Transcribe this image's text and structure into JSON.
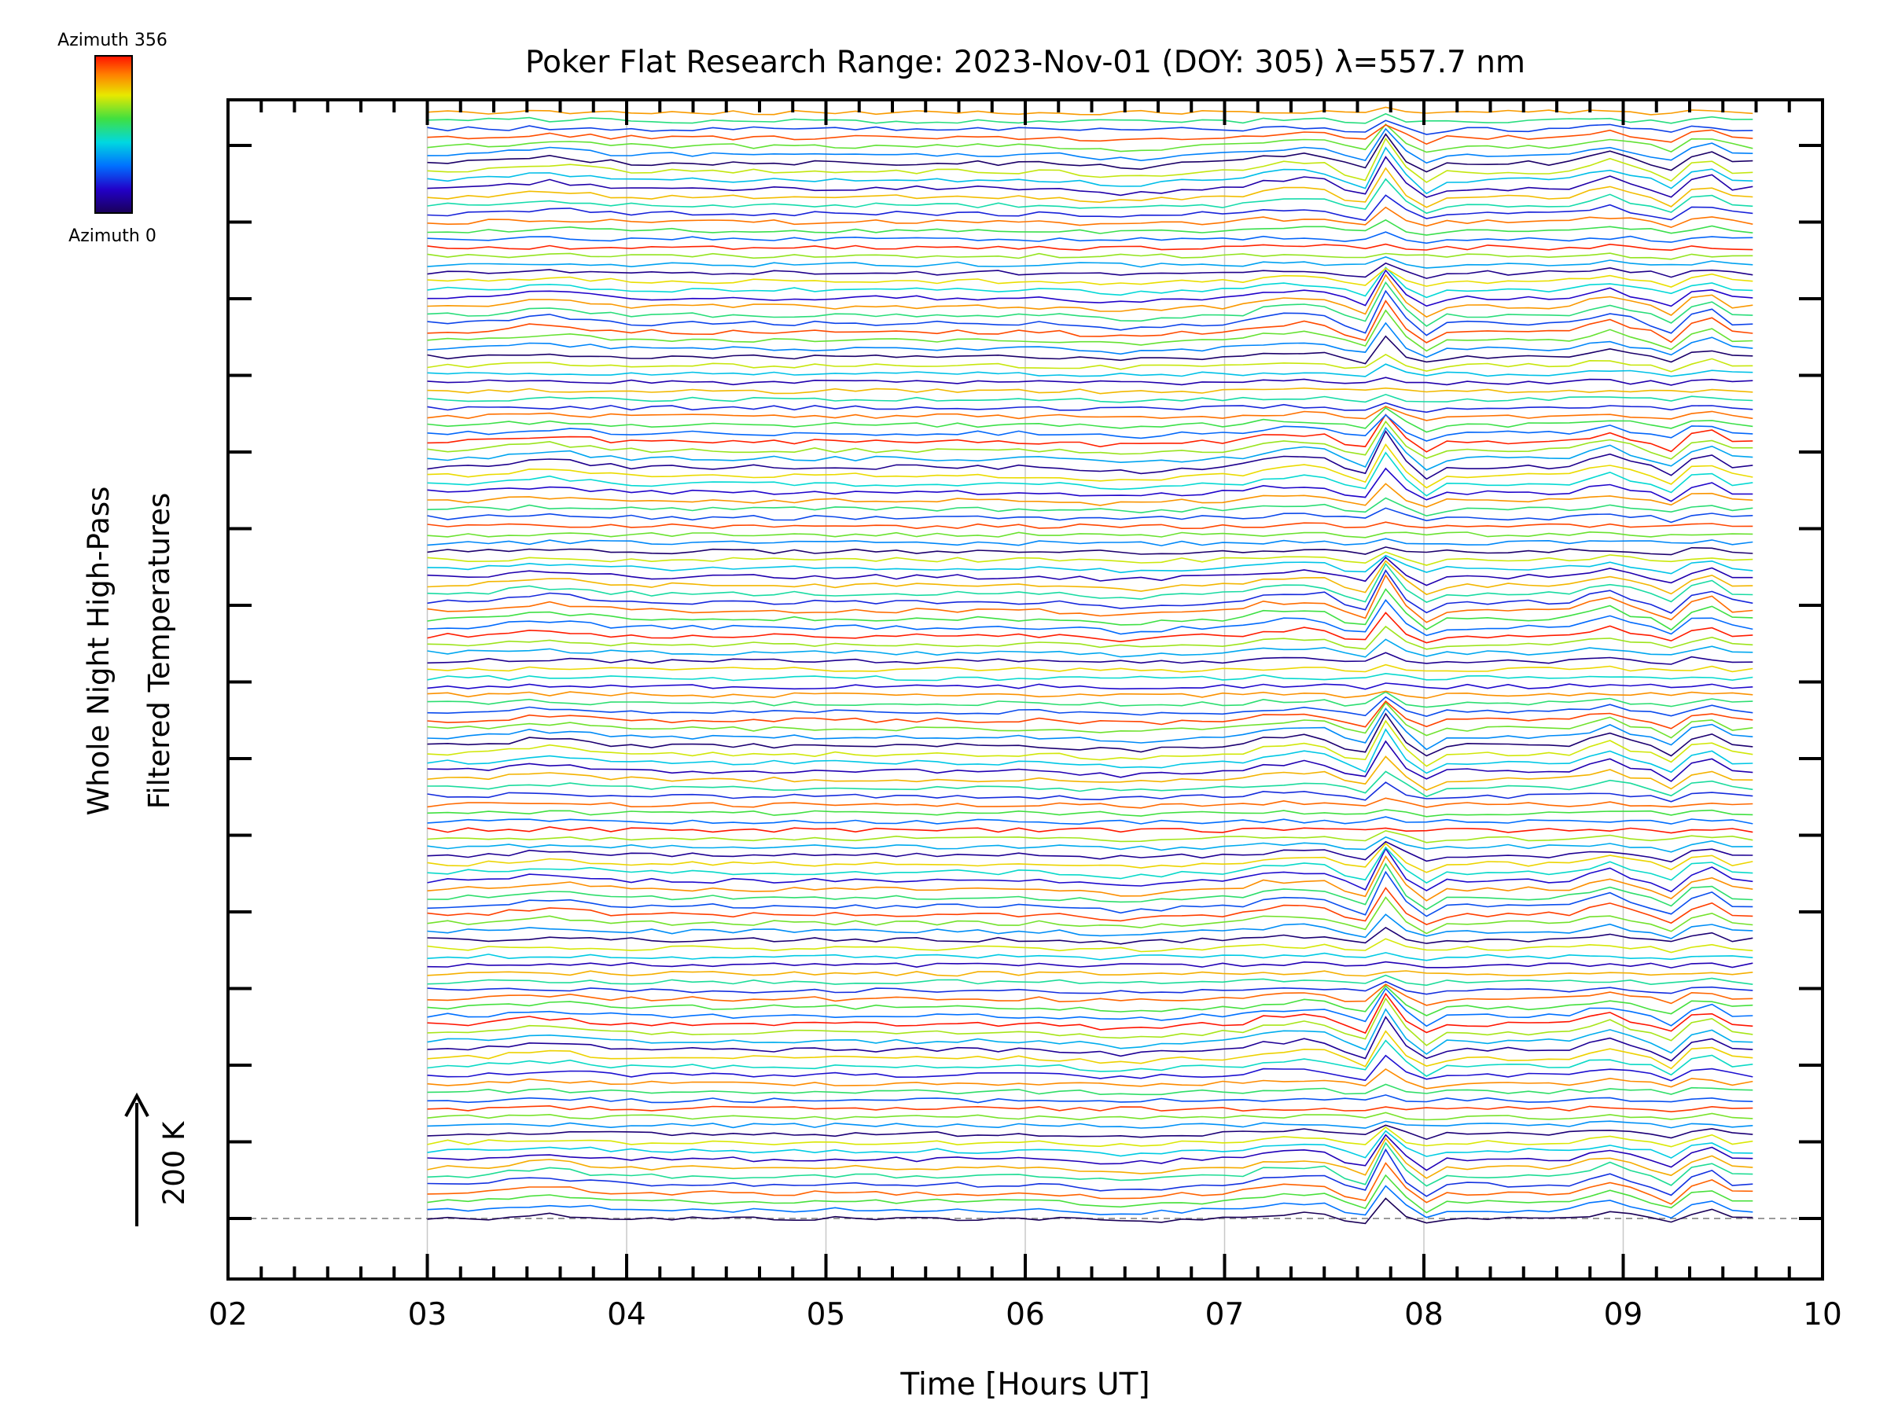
{
  "chart_data": {
    "type": "line",
    "title": "Poker Flat Research Range: 2023-Nov-01 (DOY: 305) λ=557.7 nm",
    "xlabel": "Time [Hours UT]",
    "ylabel_line1": "Whole Night High-Pass",
    "ylabel_line2": "Filtered Temperatures",
    "xlim": [
      2,
      10
    ],
    "x_tick_labels": [
      "02",
      "03",
      "04",
      "05",
      "06",
      "07",
      "08",
      "09",
      "10"
    ],
    "x_major_ticks": [
      2,
      3,
      4,
      5,
      6,
      7,
      8,
      9,
      10
    ],
    "y_ticks_count": 15,
    "scale_bar_label": "200 K",
    "colorbar": {
      "min_label": "Azimuth 0",
      "max_label": "Azimuth 356",
      "colormap": "rainbow (purple → blue → cyan → green → yellow → red)"
    },
    "x_range_of_data": [
      3.0,
      9.65
    ],
    "series_count": 132,
    "series_description": "Stacked, vertically offset traces, one per azimuth sample, colored by azimuth (0–356 deg).",
    "grid": "vertical lines at each hour",
    "baseline": "dashed gray horizontal line at lowest trace"
  },
  "colors": {
    "axis": "#000000",
    "grid": "#c8c8c8",
    "baseline": "#9a9a9a"
  }
}
